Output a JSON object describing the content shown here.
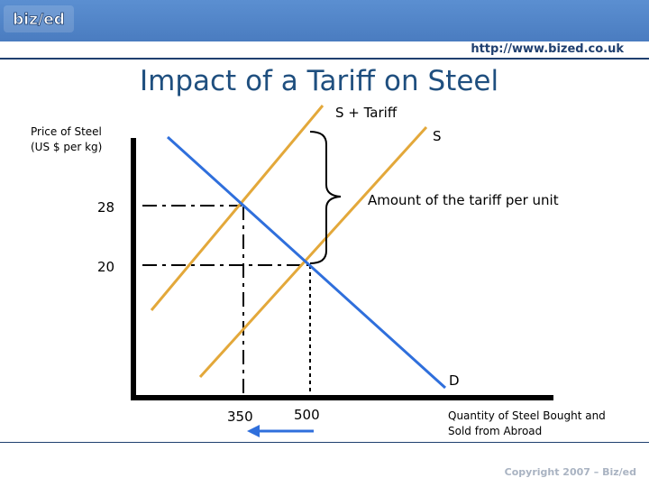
{
  "header": {
    "logo_text": "biz/ed",
    "url": "http://www.bized.co.uk",
    "colors": {
      "band": "#4a7cc0",
      "text": "#1f3f6f"
    }
  },
  "title": "Impact of a Tariff on Steel",
  "diagram": {
    "y_axis_label_line1": "Price of Steel",
    "y_axis_label_line2": "(US $ per kg)",
    "x_axis_label_line1": "Quantity of Steel Bought and",
    "x_axis_label_line2": "Sold from Abroad",
    "price_high": "28",
    "price_low": "20",
    "qty_low": "350",
    "qty_high": "500",
    "supply_tariff_label": "S + Tariff",
    "supply_label": "S",
    "demand_label": "D",
    "tariff_annotation": "Amount of the tariff per unit",
    "colors": {
      "supply": "#e3a83a",
      "demand": "#2f6fdc",
      "arrow": "#2f6fdc",
      "axis": "#000000"
    }
  },
  "footer": {
    "copyright": "Copyright 2007 – Biz/ed"
  }
}
